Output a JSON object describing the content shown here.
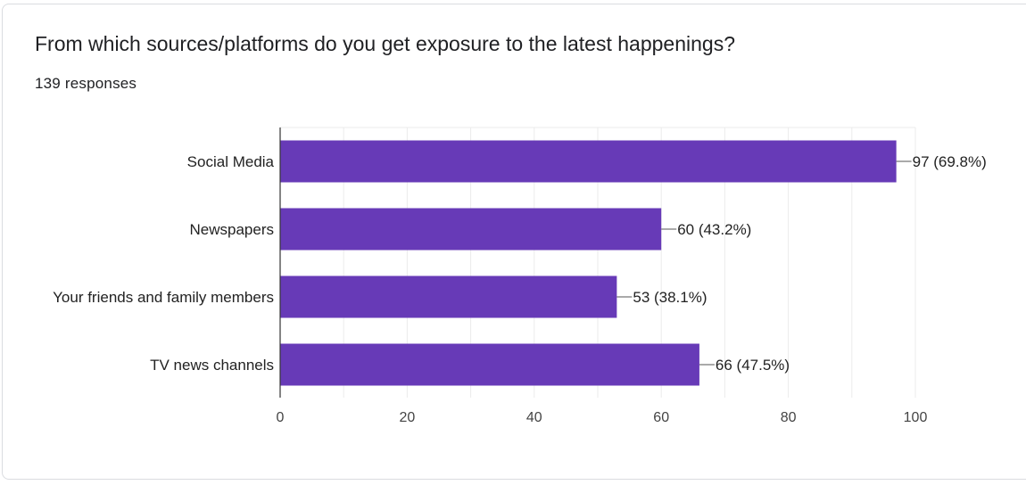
{
  "question": {
    "title": "From which sources/platforms do you get exposure to the latest happenings?",
    "responses": "139 responses"
  },
  "colors": {
    "bar": "#673ab7",
    "grid": "#ebebeb",
    "axis": "#333333"
  },
  "chart_data": {
    "type": "bar",
    "orientation": "horizontal",
    "categories": [
      "Social Media",
      "Newspapers",
      "Your friends and family members",
      "TV news channels"
    ],
    "values": [
      97,
      60,
      53,
      66
    ],
    "value_labels": [
      "97 (69.8%)",
      "60 (43.2%)",
      "53 (38.1%)",
      "66 (47.5%)"
    ],
    "xlim": [
      0,
      100
    ],
    "xticks": [
      0,
      20,
      40,
      60,
      80,
      100
    ],
    "grid": true
  }
}
